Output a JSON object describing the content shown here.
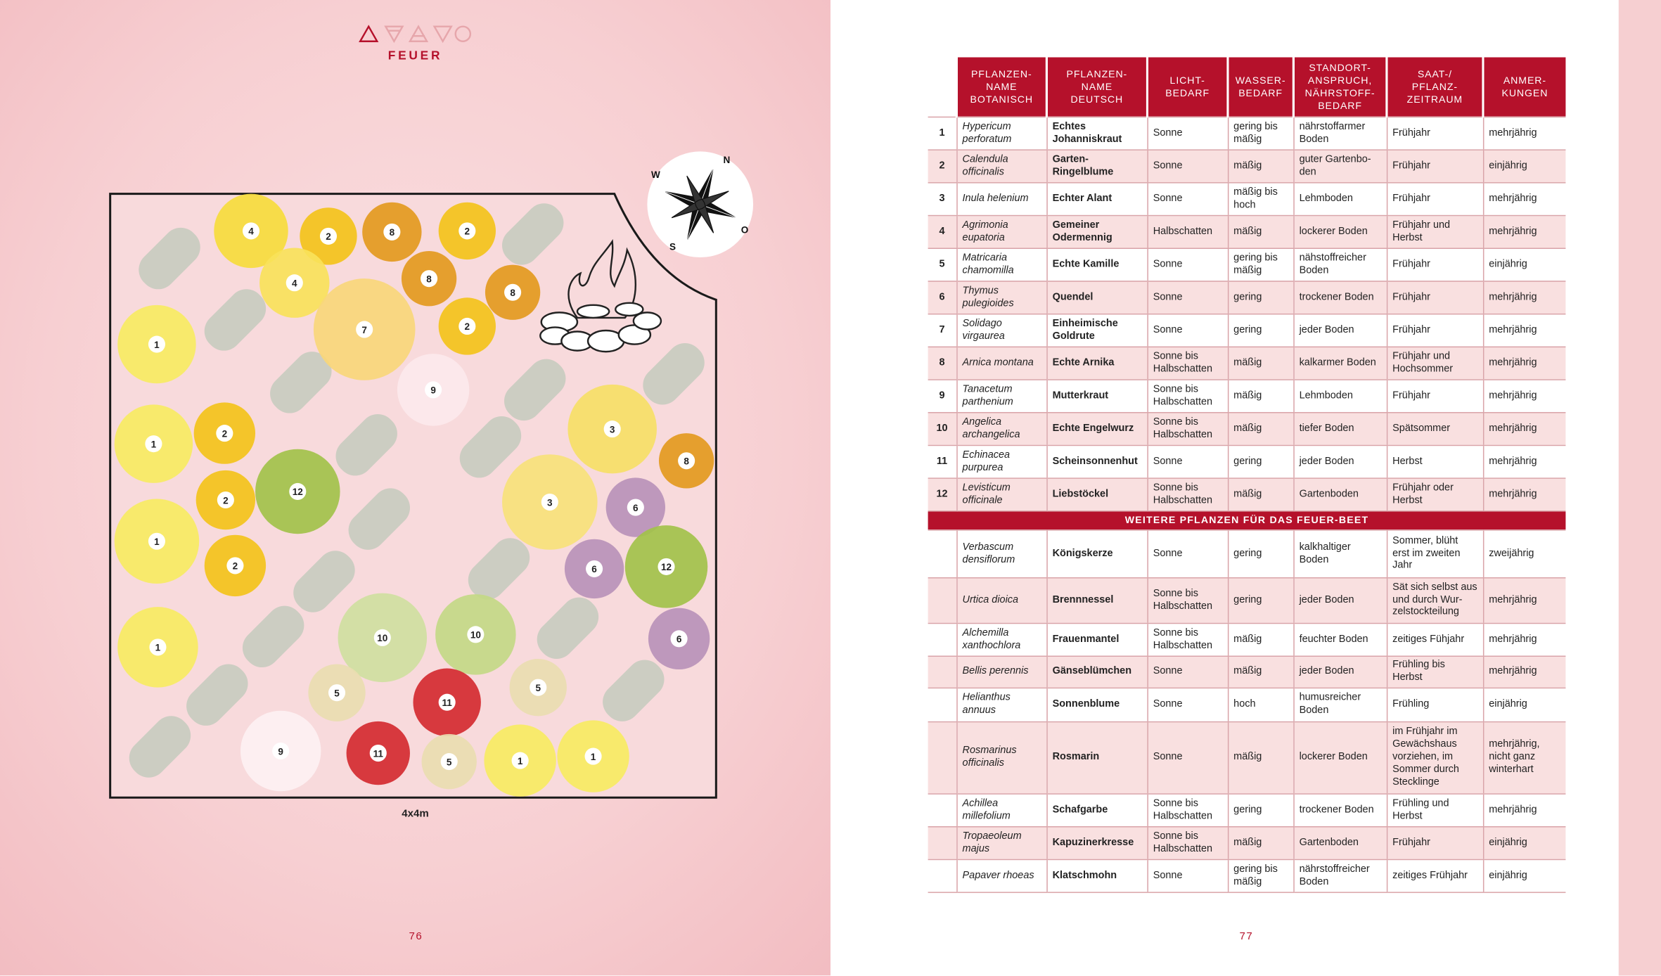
{
  "header": {
    "title": "FEUER"
  },
  "plan": {
    "plants": [
      "4",
      "2",
      "8",
      "2",
      "4",
      "8",
      "8",
      "2",
      "7",
      "1",
      "9",
      "1",
      "2",
      "3",
      "8",
      "12",
      "2",
      "3",
      "6",
      "1",
      "2",
      "6",
      "12",
      "10",
      "10",
      "6",
      "1",
      "5",
      "11",
      "5",
      "9",
      "11",
      "5",
      "1",
      "1"
    ],
    "size": "4x4m",
    "compass": [
      "N",
      "O",
      "S",
      "W"
    ]
  },
  "pages": [
    "76",
    "77"
  ],
  "table": {
    "header": [
      "PFLANZEN-\nNAME\nBOTANISCH",
      "PFLANZEN-\nNAME\nDEUTSCH",
      "LICHT-\nBEDARF",
      "WASSER-\nBEDARF",
      "STANDORT-\nANSPRUCH,\nNÄHRSTOFF-\nBEDARF",
      "SAAT-/\nPFLANZ-\nZEITRAUM",
      "ANMER-\nKUNGEN"
    ],
    "rows": [
      {
        "number": "1",
        "cells": [
          "Hypericum perforatum",
          "Echtes Johanniskraut",
          "Sonne",
          "gering bis mäßig",
          "nährstoffarmer Boden",
          "Frühjahr",
          "mehrjährig"
        ]
      },
      {
        "number": "2",
        "cells": [
          "Calendula officinalis",
          "Garten-\nRingelblume",
          "Sonne",
          "mäßig",
          "guter Gartenbo-\nden",
          "Frühjahr",
          "einjährig"
        ]
      },
      {
        "number": "3",
        "cells": [
          "Inula helenium",
          "Echter Alant",
          "Sonne",
          "mäßig bis hoch",
          "Lehmboden",
          "Frühjahr",
          "mehrjährig"
        ]
      },
      {
        "number": "4",
        "cells": [
          "Agrimonia eupatoria",
          "Gemeiner Odermennig",
          "Halbschatten",
          "mäßig",
          "lockerer Boden",
          "Frühjahr und Herbst",
          "mehrjährig"
        ]
      },
      {
        "number": "5",
        "cells": [
          "Matricaria chamomilla",
          "Echte Kamille",
          "Sonne",
          "gering bis mäßig",
          "nähstoffreicher Boden",
          "Frühjahr",
          "einjährig"
        ]
      },
      {
        "number": "6",
        "cells": [
          "Thymus pulegioides",
          "Quendel",
          "Sonne",
          "gering",
          "trockener Boden",
          "Frühjahr",
          "mehrjährig"
        ]
      },
      {
        "number": "7",
        "cells": [
          "Solidago virgaurea",
          "Einheimische Goldrute",
          "Sonne",
          "gering",
          "jeder Boden",
          "Frühjahr",
          "mehrjährig"
        ]
      },
      {
        "number": "8",
        "cells": [
          "Arnica montana",
          "Echte Arnika",
          "Sonne bis Halbschatten",
          "mäßig",
          "kalkarmer Boden",
          "Frühjahr und Hochsommer",
          "mehrjährig"
        ]
      },
      {
        "number": "9",
        "cells": [
          "Tanacetum parthenium",
          "Mutterkraut",
          "Sonne bis Halbschatten",
          "mäßig",
          "Lehmboden",
          "Frühjahr",
          "mehrjährig"
        ]
      },
      {
        "number": "10",
        "cells": [
          "Angelica archangelica",
          "Echte Engelwurz",
          "Sonne bis Halbschatten",
          "mäßig",
          "tiefer Boden",
          "Spätsommer",
          "mehrjährig"
        ]
      },
      {
        "number": "11",
        "cells": [
          "Echinacea purpurea",
          "Scheinsonnenhut",
          "Sonne",
          "gering",
          "jeder Boden",
          "Herbst",
          "mehrjährig"
        ]
      },
      {
        "number": "12",
        "cells": [
          "Levisticum officinale",
          "Liebstöckel",
          "Sonne bis Halbschatten",
          "mäßig",
          "Gartenboden",
          "Frühjahr oder Herbst",
          "mehrjährig"
        ]
      }
    ],
    "section": "WEITERE PFLANZEN FÜR DAS FEUER-BEET",
    "extra_rows": [
      {
        "cells": [
          "Verbascum densiflorum",
          "Königskerze",
          "Sonne",
          "gering",
          "kalkhaltiger Boden",
          "Sommer, blüht erst im zweiten Jahr",
          "zweijährig"
        ]
      },
      {
        "cells": [
          "Urtica dioica",
          "Brennnessel",
          "Sonne bis Halbschatten",
          "gering",
          "jeder Boden",
          "Sät sich selbst aus und durch Wur-\nzelstockteilung",
          "mehrjährig"
        ]
      },
      {
        "cells": [
          "Alchemilla xanthochlora",
          "Frauenmantel",
          "Sonne bis Halbschatten",
          "mäßig",
          "feuchter Boden",
          "zeitiges Fühjahr",
          "mehrjährig"
        ]
      },
      {
        "cells": [
          "Bellis perennis",
          "Gänseblümchen",
          "Sonne",
          "mäßig",
          "jeder Boden",
          "Frühling bis Herbst",
          "mehrjährig"
        ]
      },
      {
        "cells": [
          "Helianthus annuus",
          "Sonnenblume",
          "Sonne",
          "hoch",
          "humusreicher Boden",
          "Frühling",
          "einjährig"
        ]
      },
      {
        "cells": [
          "Rosmarinus officinalis",
          "Rosmarin",
          "Sonne",
          "mäßig",
          "lockerer Boden",
          "im Frühjahr im Gewächshaus vorziehen, im Sommer durch Stecklinge",
          "mehrjährig, nicht ganz winterhart"
        ]
      },
      {
        "cells": [
          "Achillea millefolium",
          "Schafgarbe",
          "Sonne bis Halbschatten",
          "gering",
          "trockener Boden",
          "Frühling und Herbst",
          "mehrjährig"
        ]
      },
      {
        "cells": [
          "Tropaeoleum majus",
          "Kapuzinerkresse",
          "Sonne bis Halbschatten",
          "mäßig",
          "Gartenboden",
          "Frühjahr",
          "einjährig"
        ]
      },
      {
        "cells": [
          "Papaver rhoeas",
          "Klatschmohn",
          "Sonne",
          "gering bis mäßig",
          "nährstoffreicher Boden",
          "zeitiges Frühjahr",
          "einjährig"
        ]
      }
    ]
  }
}
